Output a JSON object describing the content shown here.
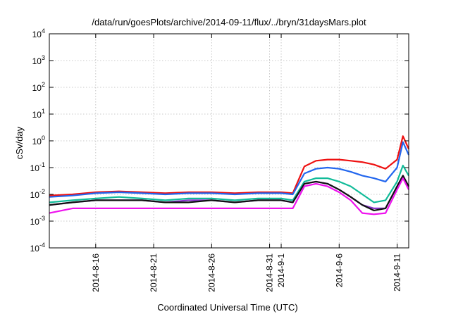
{
  "chart_data": {
    "type": "line",
    "title": "/data/run/goesPlots/archive/2014-09-11/flux/../bryn/31daysMars.plot",
    "xlabel": "Coordinated Universal Time (UTC)",
    "ylabel": "cSv/day",
    "yscale": "log",
    "ylim": [
      0.0001,
      10000
    ],
    "xlim": [
      "2014-08-12",
      "2014-09-12"
    ],
    "grid": true,
    "legend": "none",
    "x_ticks": [
      {
        "date": "2014-08-16",
        "label": "2014-8-16"
      },
      {
        "date": "2014-08-21",
        "label": "2014-8-21"
      },
      {
        "date": "2014-08-26",
        "label": "2014-8-26"
      },
      {
        "date": "2014-08-31",
        "label": "2014-8-31"
      },
      {
        "date": "2014-09-01",
        "label": "2014-9-1"
      },
      {
        "date": "2014-09-06",
        "label": "2014-9-6"
      },
      {
        "date": "2014-09-11",
        "label": "2014-9-11"
      }
    ],
    "y_ticks": [
      {
        "value": 0.0001,
        "base": "10",
        "exp": "-4"
      },
      {
        "value": 0.001,
        "base": "10",
        "exp": "-3"
      },
      {
        "value": 0.01,
        "base": "10",
        "exp": "-2"
      },
      {
        "value": 0.1,
        "base": "10",
        "exp": "-1"
      },
      {
        "value": 1,
        "base": "10",
        "exp": "0"
      },
      {
        "value": 10,
        "base": "10",
        "exp": "1"
      },
      {
        "value": 100,
        "base": "10",
        "exp": "2"
      },
      {
        "value": 1000,
        "base": "10",
        "exp": "3"
      },
      {
        "value": 10000,
        "base": "10",
        "exp": "4"
      }
    ],
    "x": [
      "2014-08-12",
      "2014-08-14",
      "2014-08-16",
      "2014-08-18",
      "2014-08-20",
      "2014-08-22",
      "2014-08-24",
      "2014-08-26",
      "2014-08-28",
      "2014-08-30",
      "2014-09-01",
      "2014-09-02",
      "2014-09-03",
      "2014-09-04",
      "2014-09-05",
      "2014-09-06",
      "2014-09-07",
      "2014-09-08",
      "2014-09-09",
      "2014-09-10",
      "2014-09-11",
      "2014-09-11T12:00",
      "2014-09-12"
    ],
    "series": [
      {
        "color": "#ee1111",
        "values": [
          0.009,
          0.01,
          0.012,
          0.013,
          0.012,
          0.011,
          0.012,
          0.012,
          0.011,
          0.012,
          0.012,
          0.011,
          0.11,
          0.18,
          0.2,
          0.2,
          0.18,
          0.16,
          0.13,
          0.09,
          0.2,
          1.5,
          0.5
        ]
      },
      {
        "color": "#2266ee",
        "values": [
          0.008,
          0.009,
          0.011,
          0.012,
          0.011,
          0.01,
          0.011,
          0.011,
          0.01,
          0.011,
          0.011,
          0.01,
          0.06,
          0.09,
          0.1,
          0.09,
          0.07,
          0.05,
          0.04,
          0.03,
          0.1,
          0.9,
          0.3
        ]
      },
      {
        "color": "#11bb99",
        "values": [
          0.005,
          0.006,
          0.007,
          0.008,
          0.007,
          0.006,
          0.007,
          0.007,
          0.006,
          0.007,
          0.007,
          0.006,
          0.03,
          0.04,
          0.04,
          0.03,
          0.02,
          0.01,
          0.005,
          0.006,
          0.03,
          0.12,
          0.05
        ]
      },
      {
        "color": "#8833cc",
        "values": [
          0.004,
          0.005,
          0.006,
          0.006,
          0.006,
          0.005,
          0.006,
          0.006,
          0.005,
          0.006,
          0.006,
          0.005,
          0.025,
          0.03,
          0.025,
          0.015,
          0.008,
          0.004,
          0.003,
          0.003,
          0.02,
          0.05,
          0.02
        ]
      },
      {
        "color": "#111111",
        "values": [
          0.004,
          0.005,
          0.006,
          0.006,
          0.006,
          0.005,
          0.005,
          0.006,
          0.005,
          0.006,
          0.006,
          0.005,
          0.025,
          0.03,
          0.025,
          0.015,
          0.008,
          0.004,
          0.0025,
          0.003,
          0.02,
          0.05,
          0.02
        ]
      },
      {
        "color": "#ee11ee",
        "values": [
          0.002,
          0.003,
          0.003,
          0.003,
          0.003,
          0.003,
          0.003,
          0.003,
          0.003,
          0.003,
          0.003,
          0.003,
          0.02,
          0.025,
          0.02,
          0.012,
          0.006,
          0.002,
          0.0018,
          0.002,
          0.015,
          0.04,
          0.015
        ]
      }
    ]
  }
}
